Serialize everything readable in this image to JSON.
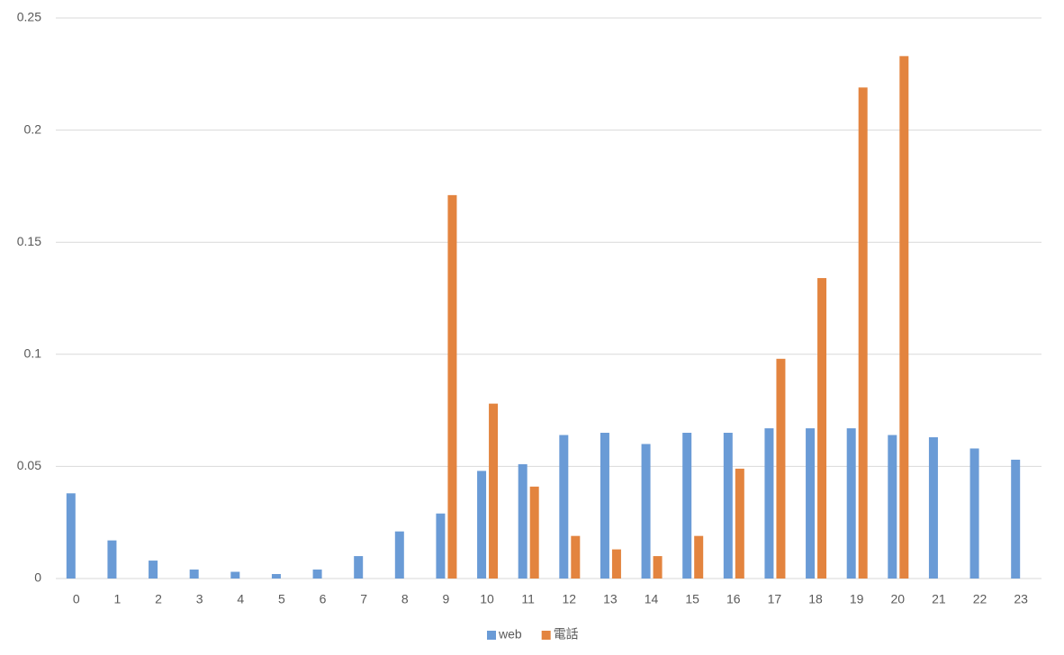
{
  "chart_data": {
    "type": "bar",
    "categories": [
      "0",
      "1",
      "2",
      "3",
      "4",
      "5",
      "6",
      "7",
      "8",
      "9",
      "10",
      "11",
      "12",
      "13",
      "14",
      "15",
      "16",
      "17",
      "18",
      "19",
      "20",
      "21",
      "22",
      "23"
    ],
    "series": [
      {
        "name": "web",
        "color": "#6a9bd6",
        "values": [
          0.038,
          0.017,
          0.008,
          0.004,
          0.003,
          0.002,
          0.004,
          0.01,
          0.021,
          0.029,
          0.048,
          0.051,
          0.064,
          0.065,
          0.06,
          0.065,
          0.065,
          0.067,
          0.067,
          0.067,
          0.064,
          0.063,
          0.058,
          0.053
        ]
      },
      {
        "name": "電話",
        "color": "#e3843f",
        "values": [
          null,
          null,
          null,
          null,
          null,
          null,
          null,
          null,
          null,
          0.171,
          0.078,
          0.041,
          0.019,
          0.013,
          0.01,
          0.019,
          0.049,
          0.098,
          0.134,
          0.219,
          0.233,
          null,
          null,
          null
        ]
      }
    ],
    "ylim": [
      0,
      0.25
    ],
    "yticks": [
      0,
      0.05,
      0.1,
      0.15,
      0.2,
      0.25
    ],
    "grid": true,
    "legend": "bottom"
  }
}
